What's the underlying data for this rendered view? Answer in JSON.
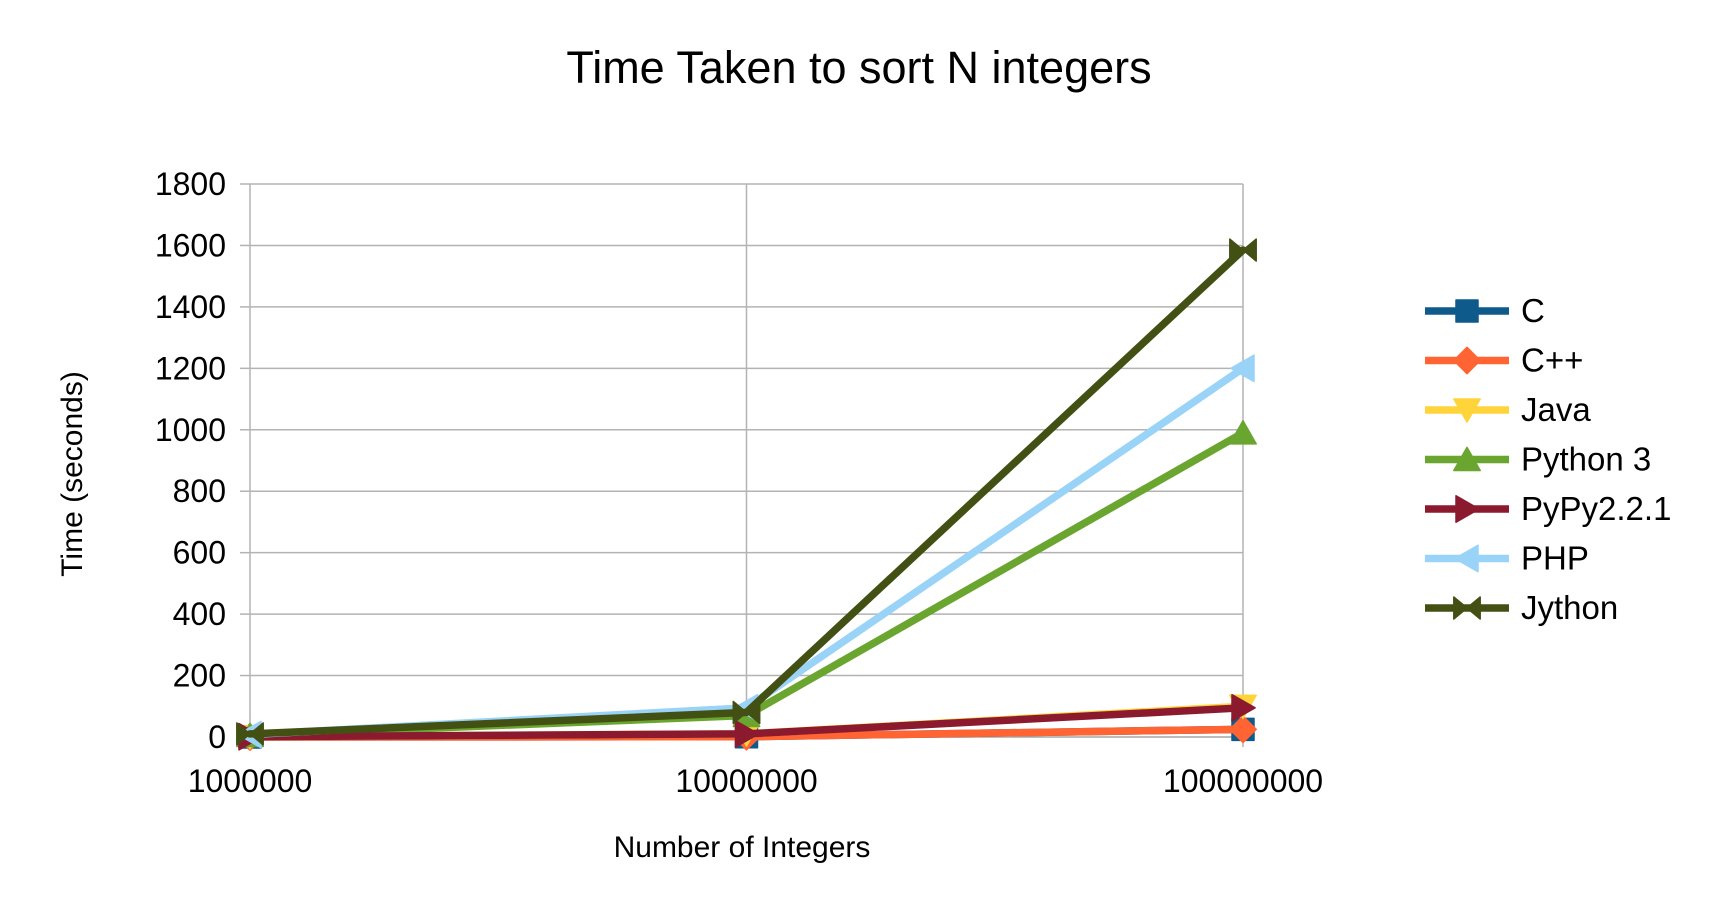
{
  "chart_data": {
    "type": "line",
    "title": "Time Taken to sort N integers",
    "xlabel": "Number of Integers",
    "ylabel": "Time (seconds)",
    "categories": [
      "1000000",
      "10000000",
      "100000000"
    ],
    "ylim": [
      0,
      1800
    ],
    "yticks": [
      0,
      200,
      400,
      600,
      800,
      1000,
      1200,
      1400,
      1600,
      1800
    ],
    "grid": true,
    "legend_position": "right",
    "series": [
      {
        "name": "C",
        "values": [
          0.1,
          1,
          25
        ],
        "color": "#0e5a8a",
        "marker": "square"
      },
      {
        "name": "C++",
        "values": [
          0.1,
          1,
          25
        ],
        "color": "#ff6432",
        "marker": "diamond"
      },
      {
        "name": "Java",
        "values": [
          1,
          10,
          100
        ],
        "color": "#ffd43b",
        "marker": "triangle-down"
      },
      {
        "name": "Python 3",
        "values": [
          5,
          70,
          990
        ],
        "color": "#6aa62f",
        "marker": "triangle-up"
      },
      {
        "name": "PyPy2.2.1",
        "values": [
          1,
          10,
          95
        ],
        "color": "#8b1a2f",
        "marker": "triangle-right"
      },
      {
        "name": "PHP",
        "values": [
          8,
          95,
          1200
        ],
        "color": "#99d3f7",
        "marker": "triangle-left"
      },
      {
        "name": "Jython",
        "values": [
          10,
          80,
          1585
        ],
        "color": "#435014",
        "marker": "bowtie"
      }
    ]
  }
}
